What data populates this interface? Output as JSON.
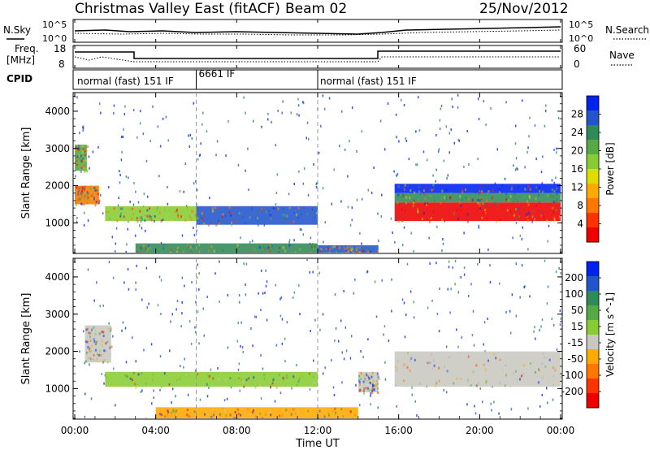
{
  "header": {
    "title": "Christmas Valley East (fitACF)",
    "beam": "Beam 02",
    "date": "25/Nov/2012"
  },
  "strip_labels": {
    "nsky": "N.Sky",
    "nsearch": "N.Search",
    "freq_line1": "Freq.",
    "freq_line2": "[MHz]",
    "nave": "Nave",
    "cpid": "CPID",
    "left_ticks_top": [
      "10^5",
      "10^0"
    ],
    "right_ticks_top": [
      "10^5",
      "10^0"
    ],
    "left_ticks_freq": [
      "18",
      "8"
    ],
    "right_ticks_nave": [
      "60",
      "0"
    ]
  },
  "cpid_segments": [
    {
      "label": "normal (fast) 151 IF",
      "start_hour": 0
    },
    {
      "label": "6661 IF",
      "start_hour": 6
    },
    {
      "label": "normal (fast) 151 IF",
      "start_hour": 12
    }
  ],
  "xaxis": {
    "label": "Time UT",
    "ticks": [
      "00:00",
      "04:00",
      "08:00",
      "12:00",
      "16:00",
      "20:00",
      "00:00"
    ],
    "tick_hours": [
      0,
      4,
      8,
      12,
      16,
      20,
      24
    ]
  },
  "chart_data": [
    {
      "type": "heatmap",
      "ylabel": "Slant Range [km]",
      "yticks": [
        1000,
        2000,
        3000,
        4000
      ],
      "ylim": [
        180,
        4500
      ],
      "xlim": [
        0,
        24
      ],
      "colorbar": {
        "label": "Power [dB]",
        "ticks": [
          "4",
          "8",
          "12",
          "16",
          "20",
          "24",
          "28"
        ],
        "colors": [
          "#0022ee",
          "#2255cc",
          "#2e8b57",
          "#55aa44",
          "#88cc33",
          "#dddd00",
          "#ffaa00",
          "#ff7700",
          "#ff3300",
          "#ee0000"
        ]
      },
      "regions": [
        {
          "t0": 0.0,
          "t1": 1.2,
          "r0": 1500,
          "r1": 2000,
          "color": "#ff7700"
        },
        {
          "t0": 0.0,
          "t1": 0.6,
          "r0": 2400,
          "r1": 3100,
          "color": "#55aa44"
        },
        {
          "t0": 1.5,
          "t1": 6.0,
          "r0": 1050,
          "r1": 1450,
          "color": "#88cc33"
        },
        {
          "t0": 6.0,
          "t1": 12.0,
          "r0": 950,
          "r1": 1450,
          "color": "#2255cc"
        },
        {
          "t0": 15.8,
          "t1": 24.0,
          "r0": 1050,
          "r1": 1550,
          "color": "#ee0000"
        },
        {
          "t0": 15.8,
          "t1": 24.0,
          "r0": 1550,
          "r1": 1800,
          "color": "#2e8b57"
        },
        {
          "t0": 15.8,
          "t1": 24.0,
          "r0": 1800,
          "r1": 2050,
          "color": "#0022ee"
        },
        {
          "t0": 3.0,
          "t1": 12.0,
          "r0": 200,
          "r1": 450,
          "color": "#2e8b57"
        },
        {
          "t0": 12.0,
          "t1": 15.0,
          "r0": 200,
          "r1": 400,
          "color": "#2255cc"
        }
      ]
    },
    {
      "type": "heatmap",
      "ylabel": "Slant Range [km]",
      "yticks": [
        1000,
        2000,
        3000,
        4000
      ],
      "ylim": [
        180,
        4500
      ],
      "xlim": [
        0,
        24
      ],
      "colorbar": {
        "label": "Velocity [m s^-1]",
        "ticks": [
          "200",
          "100",
          "50",
          "15",
          "-15",
          "-50",
          "-100",
          "-200"
        ],
        "colors": [
          "#0022ee",
          "#2255cc",
          "#2e8b57",
          "#55aa44",
          "#88cc33",
          "#c8c8c0",
          "#ffaa00",
          "#ff7700",
          "#ff3300",
          "#ee0000"
        ]
      },
      "regions": [
        {
          "t0": 0.5,
          "t1": 1.8,
          "r0": 1700,
          "r1": 2700,
          "color": "#c8c8c0"
        },
        {
          "t0": 1.5,
          "t1": 12.0,
          "r0": 1050,
          "r1": 1450,
          "color": "#88cc33"
        },
        {
          "t0": 15.8,
          "t1": 24.0,
          "r0": 1050,
          "r1": 2000,
          "color": "#c8c8c0"
        },
        {
          "t0": 4.0,
          "t1": 14.0,
          "r0": 200,
          "r1": 500,
          "color": "#ffaa00"
        },
        {
          "t0": 14.0,
          "t1": 15.0,
          "r0": 900,
          "r1": 1450,
          "color": "#c8c8c0"
        }
      ]
    }
  ]
}
